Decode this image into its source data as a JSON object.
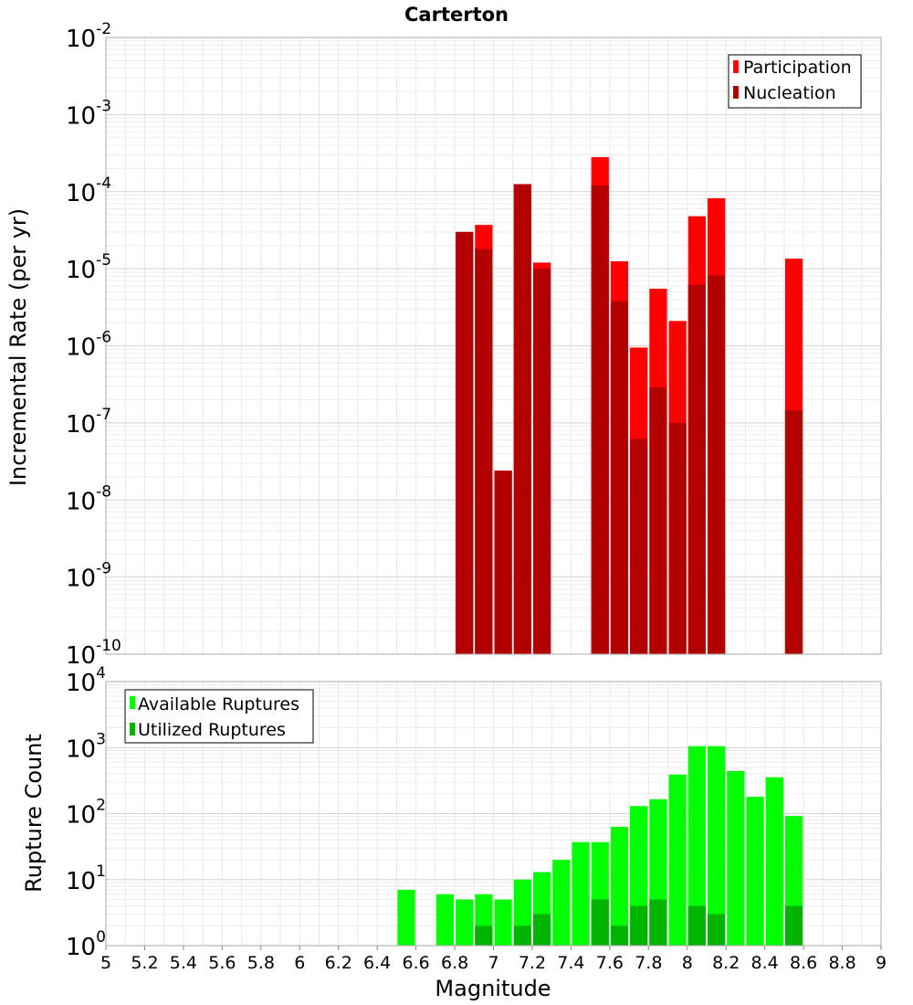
{
  "chart_data": [
    {
      "type": "bar",
      "title": "Carterton",
      "xlabel": "",
      "ylabel": "Incremental Rate (per yr)",
      "yscale": "log",
      "ylim_exponents": [
        -10,
        -2
      ],
      "xlim": [
        5,
        9
      ],
      "bar_width": 0.1,
      "grid": true,
      "legend_position": "top-right",
      "series": [
        {
          "name": "Participation",
          "color": "#ff0000",
          "x": [
            6.85,
            6.95,
            7.05,
            7.15,
            7.25,
            7.55,
            7.65,
            7.75,
            7.85,
            7.95,
            8.05,
            8.15,
            8.55
          ],
          "values": [
            3e-05,
            3.7e-05,
            2.4e-08,
            0.000125,
            1.2e-05,
            0.00028,
            1.25e-05,
            9.5e-07,
            5.5e-06,
            2.1e-06,
            4.8e-05,
            8.2e-05,
            1.35e-05
          ]
        },
        {
          "name": "Nucleation",
          "color": "#b30000",
          "x": [
            6.85,
            6.95,
            7.05,
            7.15,
            7.25,
            7.55,
            7.65,
            7.75,
            7.85,
            7.95,
            8.05,
            8.15,
            8.55
          ],
          "values": [
            3e-05,
            1.8e-05,
            2.4e-08,
            0.000125,
            1e-05,
            0.00012,
            3.8e-06,
            6.2e-08,
            2.9e-07,
            1e-07,
            6.2e-06,
            8.2e-06,
            1.45e-07
          ]
        }
      ]
    },
    {
      "type": "bar",
      "title": "",
      "xlabel": "Magnitude",
      "ylabel": "Rupture Count",
      "yscale": "log",
      "ylim_exponents": [
        0,
        4
      ],
      "xlim": [
        5,
        9
      ],
      "x_ticks": [
        "5",
        "5.2",
        "5.4",
        "5.6",
        "5.8",
        "6",
        "6.2",
        "6.4",
        "6.6",
        "6.8",
        "7",
        "7.2",
        "7.4",
        "7.6",
        "7.8",
        "8",
        "8.2",
        "8.4",
        "8.6",
        "8.8",
        "9"
      ],
      "bar_width": 0.1,
      "grid": true,
      "legend_position": "top-left",
      "series": [
        {
          "name": "Available Ruptures",
          "color": "#00ff00",
          "x": [
            6.55,
            6.75,
            6.85,
            6.95,
            7.05,
            7.15,
            7.25,
            7.35,
            7.45,
            7.55,
            7.65,
            7.75,
            7.85,
            7.95,
            8.05,
            8.15,
            8.25,
            8.35,
            8.45,
            8.55
          ],
          "values": [
            7,
            6,
            5,
            6,
            5,
            10,
            13,
            20,
            37,
            37,
            63,
            130,
            165,
            390,
            1050,
            1050,
            440,
            180,
            355,
            92
          ]
        },
        {
          "name": "Utilized Ruptures",
          "color": "#00b300",
          "x": [
            6.85,
            6.95,
            7.05,
            7.15,
            7.25,
            7.55,
            7.65,
            7.75,
            7.85,
            7.95,
            8.05,
            8.15,
            8.55
          ],
          "values": [
            1,
            2,
            1,
            2,
            3,
            5,
            2,
            4,
            5,
            1,
            4,
            3,
            4
          ]
        }
      ]
    }
  ]
}
